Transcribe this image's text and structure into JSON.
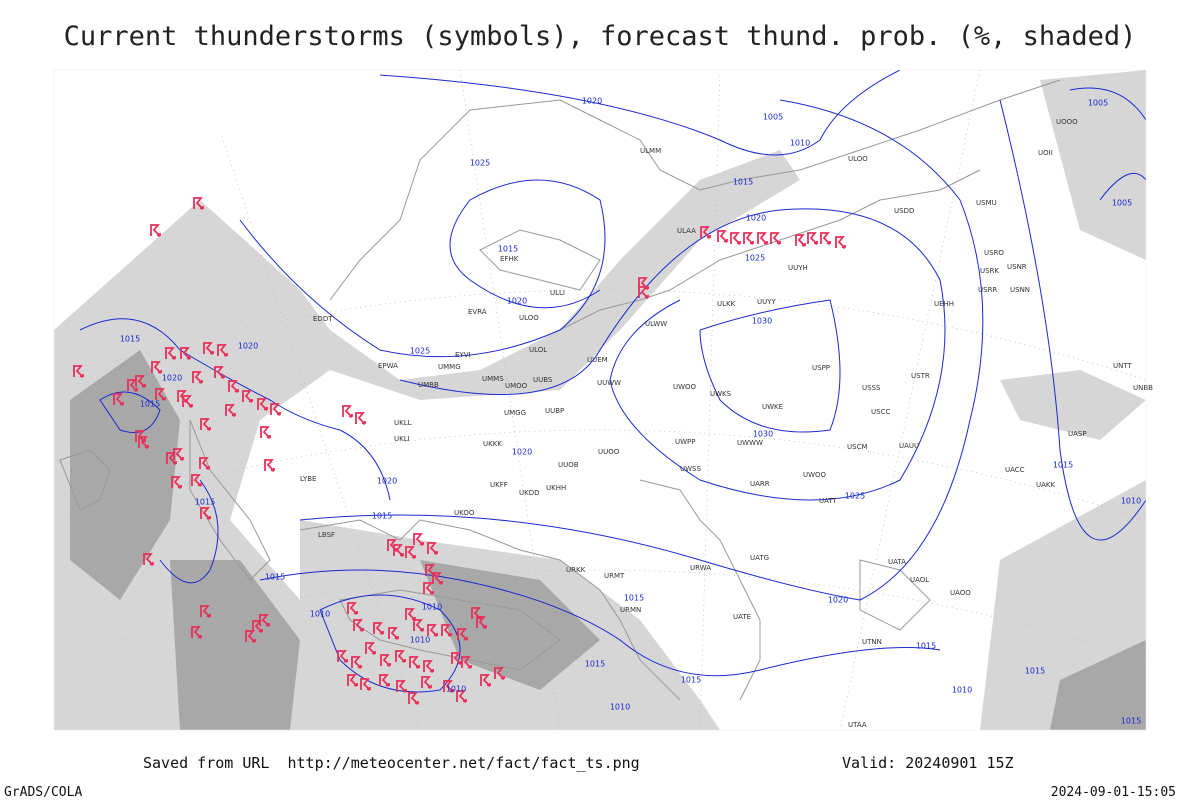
{
  "title": "Current thunderstorms (symbols), forecast thund. prob. (%, shaded)",
  "footer": {
    "source": "Saved from URL  http://meteocenter.net/fact/fact_ts.png",
    "valid": "Valid: 20240901 15Z",
    "software": "GrADS/COLA",
    "timestamp": "2024-09-01-15:05"
  },
  "isobar_labels": [
    1020,
    1005,
    1010,
    1025,
    1015,
    1020,
    1005,
    1005,
    1015,
    1025,
    1020,
    1030,
    1025,
    1015,
    1020,
    1020,
    1015,
    1030,
    1020,
    1020,
    1015,
    1025,
    1015,
    1010,
    1015,
    1015,
    1020,
    1015,
    1010,
    1010,
    1010,
    1015,
    1015,
    1010,
    1015,
    1010,
    1015,
    1010,
    1015
  ],
  "station_labels": [
    "ULAA",
    "UUYH",
    "ULKK",
    "UUYY",
    "UEHH",
    "ULWW",
    "USPP",
    "UUEM",
    "UWOO",
    "UUWW",
    "USSS",
    "USTR",
    "UWKS",
    "UWKE",
    "UWPP",
    "USCC",
    "UWWW",
    "USCM",
    "UAUU",
    "UWSS",
    "UWOO",
    "UARR",
    "UATT",
    "UACC",
    "UAKK",
    "UASP",
    "UNBB",
    "UNTT",
    "USRR",
    "USNN",
    "USRK",
    "USNR",
    "USRO",
    "USMU",
    "USDD",
    "ULOO",
    "UOOO",
    "UOII",
    "ULMM",
    "EFHK",
    "ULLI",
    "EVRA",
    "ULOO",
    "ULOL",
    "EDDT",
    "EPWA",
    "EYVI",
    "UMMG",
    "UMMS",
    "UMOO",
    "UUBS",
    "UMBB",
    "UKLL",
    "UKLI",
    "UMGG",
    "UUBP",
    "UKKK",
    "UUOO",
    "UUOB",
    "UKHH",
    "UKDD",
    "UKFF",
    "UATG",
    "UATA",
    "UAOL",
    "UAOO",
    "URWA",
    "URMT",
    "URMN",
    "UTNN",
    "UTAA",
    "LYBE",
    "LBSF",
    "UKOO",
    "URKK",
    "UATE"
  ]
}
